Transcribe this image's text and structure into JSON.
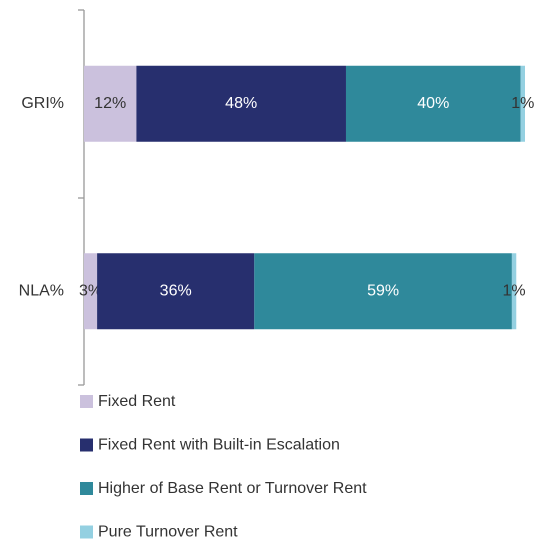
{
  "chart_data": {
    "type": "stacked-bar-horizontal",
    "categories": [
      "GRI%",
      "NLA%"
    ],
    "series": [
      {
        "name": "Fixed Rent",
        "color": "#cbc1dd",
        "values": [
          12,
          3
        ],
        "value_labels": [
          "12%",
          "3%"
        ]
      },
      {
        "name": "Fixed Rent with Built-in Escalation",
        "color": "#272f6e",
        "values": [
          48,
          36
        ],
        "value_labels": [
          "48%",
          "36%"
        ]
      },
      {
        "name": "Higher of Base Rent or Turnover Rent",
        "color": "#2f899b",
        "values": [
          40,
          59
        ],
        "value_labels": [
          "40%",
          "59%"
        ]
      },
      {
        "name": "Pure Turnover Rent",
        "color": "#94d0e1",
        "values": [
          1,
          1
        ],
        "value_labels": [
          "1%",
          "1%"
        ]
      }
    ],
    "legend": "bottom-left"
  }
}
